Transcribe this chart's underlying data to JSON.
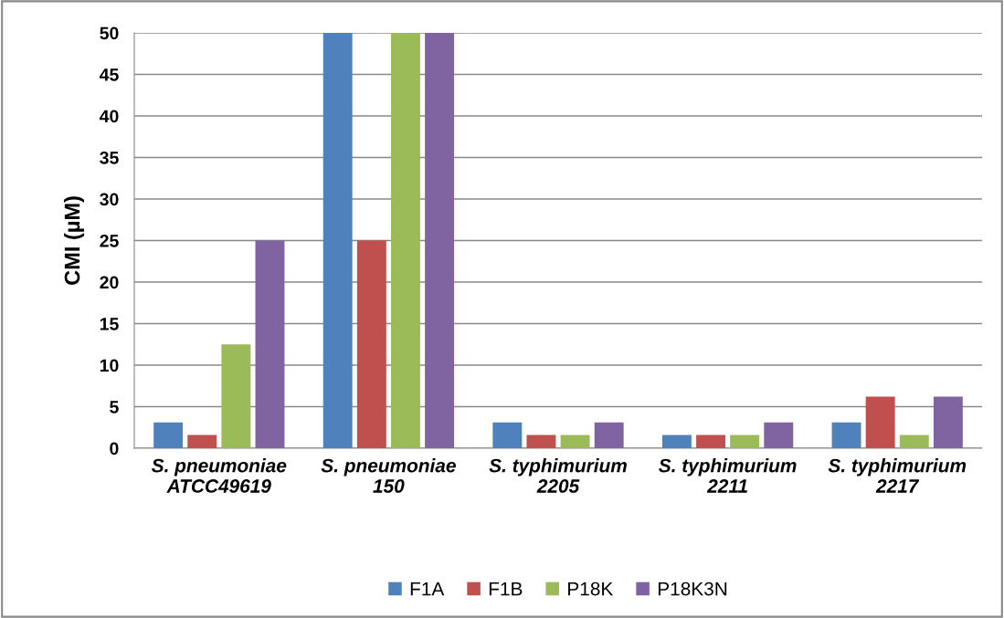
{
  "chart_data": {
    "type": "bar",
    "ylabel": "CMI (µM)",
    "categories": [
      "S. pneumoniae\nATCC49619",
      "S. pneumoniae\n150",
      "S. typhimurium\n2205",
      "S. typhimurium\n2211",
      "S. typhimurium\n2217"
    ],
    "series": [
      {
        "name": "F1A",
        "color": "#4f81bd",
        "values": [
          3.1,
          50,
          3.1,
          1.6,
          3.1
        ]
      },
      {
        "name": "F1B",
        "color": "#c0504d",
        "values": [
          1.6,
          25,
          1.6,
          1.6,
          6.2
        ]
      },
      {
        "name": "P18K",
        "color": "#9bbb59",
        "values": [
          12.5,
          50,
          1.6,
          1.6,
          1.6
        ]
      },
      {
        "name": "P18K3N",
        "color": "#8064a2",
        "values": [
          25,
          50,
          3.1,
          3.1,
          6.2
        ]
      }
    ],
    "ylim": [
      0,
      50
    ],
    "yticks": [
      0,
      5,
      10,
      15,
      20,
      25,
      30,
      35,
      40,
      45,
      50
    ],
    "grid": "y",
    "legend": "bottom"
  }
}
